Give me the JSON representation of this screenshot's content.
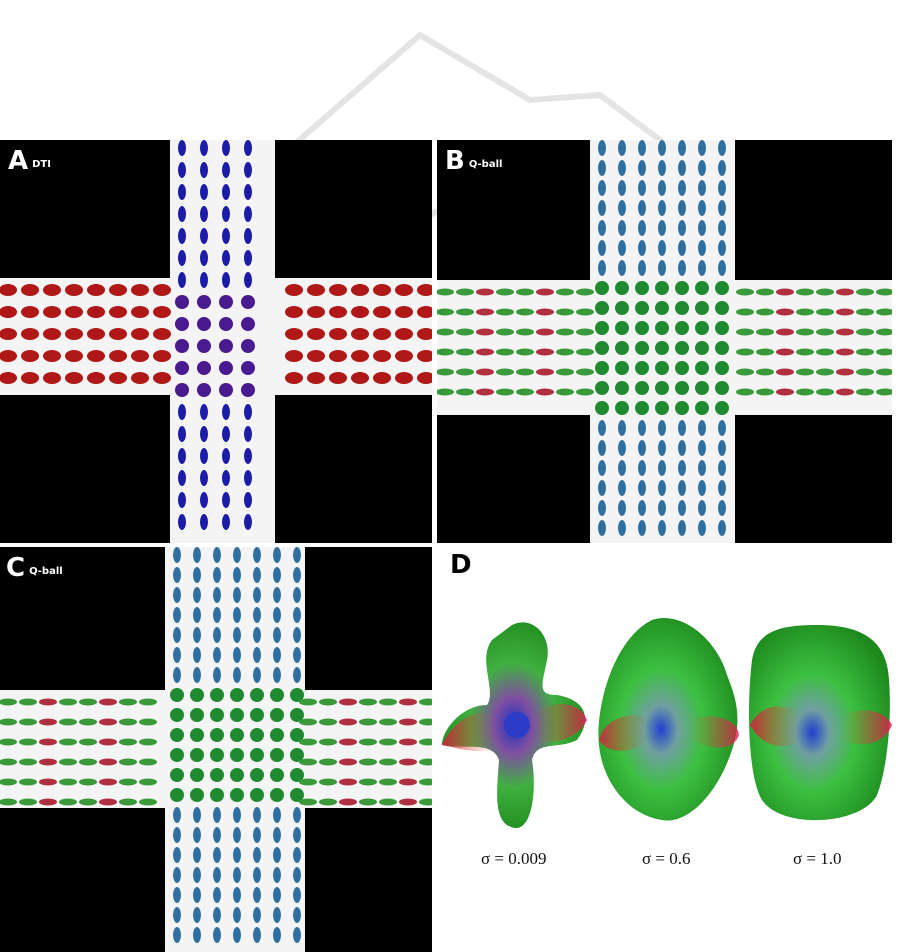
{
  "panels": {
    "a": {
      "letter": "A",
      "method": "DTI"
    },
    "b": {
      "letter": "B",
      "method": "Q-ball"
    },
    "c": {
      "letter": "C",
      "method": "Q-ball"
    },
    "d": {
      "letter": "D",
      "sigma_labels": [
        "σ = 0.009",
        "σ = 0.6",
        "σ = 1.0"
      ]
    }
  },
  "colors": {
    "background": "#000000",
    "tract": "#f4f4f4",
    "horizontal_fiber": "#b01818",
    "vertical_fiber": "#1c1ca8",
    "green": "#2fb82f"
  }
}
